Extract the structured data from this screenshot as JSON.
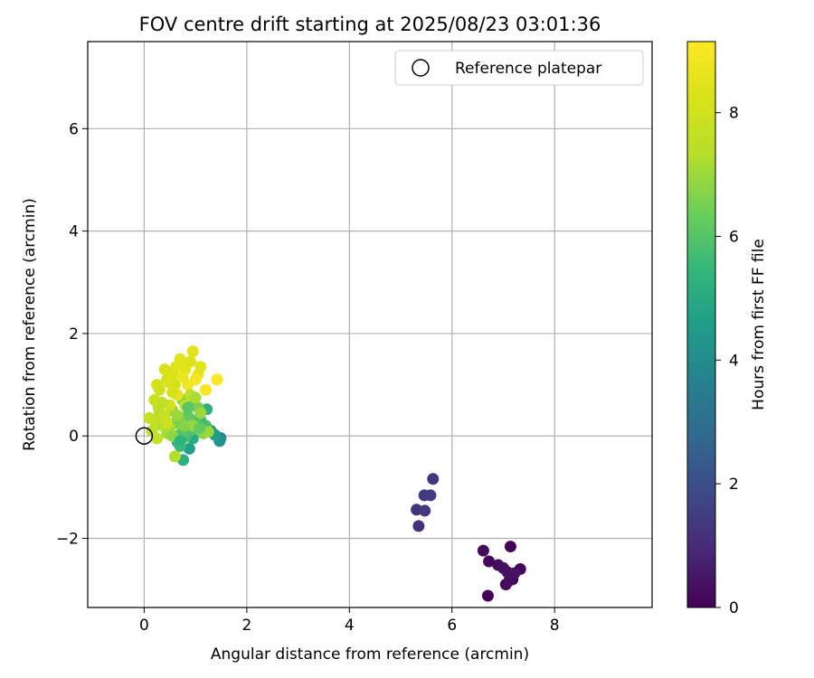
{
  "chart_data": {
    "type": "scatter",
    "title": "FOV centre drift starting at 2025/08/23 03:01:36",
    "xlabel": "Angular distance from reference (arcmin)",
    "ylabel": "Rotation from reference (arcmin)",
    "xlim": [
      -1.1,
      9.9
    ],
    "ylim": [
      -3.35,
      7.7
    ],
    "xticks": [
      0,
      2,
      4,
      6,
      8
    ],
    "yticks": [
      -2,
      0,
      2,
      4,
      6
    ],
    "xtick_labels": [
      "0",
      "2",
      "4",
      "6",
      "8"
    ],
    "ytick_labels": [
      "−2",
      "0",
      "2",
      "4",
      "6"
    ],
    "grid": true,
    "legend": {
      "placement": "top-right",
      "entries": [
        "Reference platepar"
      ]
    },
    "colorbar": {
      "label": "Hours from first FF file",
      "min": 0,
      "max": 9.15,
      "ticks": [
        0,
        2,
        4,
        6,
        8
      ],
      "tick_labels": [
        "0",
        "2",
        "4",
        "6",
        "8"
      ],
      "colormap": "viridis"
    },
    "reference_point": {
      "x": 0,
      "y": 0,
      "label": "Reference platepar"
    },
    "points": [
      {
        "x": 7.14,
        "y": -2.16,
        "h": 0.1
      },
      {
        "x": 6.61,
        "y": -2.24,
        "h": 0.2
      },
      {
        "x": 6.72,
        "y": -2.45,
        "h": 0.15
      },
      {
        "x": 6.9,
        "y": -2.52,
        "h": 0.25
      },
      {
        "x": 7.0,
        "y": -2.58,
        "h": 0.3
      },
      {
        "x": 7.08,
        "y": -2.66,
        "h": 0.35
      },
      {
        "x": 7.33,
        "y": -2.6,
        "h": 0.2
      },
      {
        "x": 7.18,
        "y": -2.8,
        "h": 0.1
      },
      {
        "x": 7.05,
        "y": -2.9,
        "h": 0.2
      },
      {
        "x": 6.7,
        "y": -3.12,
        "h": 0.1
      },
      {
        "x": 7.22,
        "y": -2.68,
        "h": 0.4
      },
      {
        "x": 7.12,
        "y": -2.82,
        "h": 0.3
      },
      {
        "x": 5.63,
        "y": -0.84,
        "h": 1.3
      },
      {
        "x": 5.46,
        "y": -1.16,
        "h": 1.4
      },
      {
        "x": 5.58,
        "y": -1.16,
        "h": 1.5
      },
      {
        "x": 5.31,
        "y": -1.44,
        "h": 1.2
      },
      {
        "x": 5.47,
        "y": -1.46,
        "h": 1.3
      },
      {
        "x": 5.35,
        "y": -1.76,
        "h": 1.2
      },
      {
        "x": 1.49,
        "y": -0.04,
        "h": 4.0
      },
      {
        "x": 1.47,
        "y": -0.1,
        "h": 4.2
      },
      {
        "x": 1.38,
        "y": 0.02,
        "h": 4.5
      },
      {
        "x": 1.3,
        "y": 0.1,
        "h": 4.6
      },
      {
        "x": 0.88,
        "y": -0.25,
        "h": 4.6
      },
      {
        "x": 0.95,
        "y": -0.05,
        "h": 5.0
      },
      {
        "x": 1.22,
        "y": 0.52,
        "h": 5.2
      },
      {
        "x": 1.1,
        "y": 0.3,
        "h": 5.5
      },
      {
        "x": 1.2,
        "y": 0.2,
        "h": 5.8
      },
      {
        "x": 0.76,
        "y": -0.47,
        "h": 5.2
      },
      {
        "x": 0.7,
        "y": -0.2,
        "h": 5.6
      },
      {
        "x": 0.65,
        "y": -0.12,
        "h": 5.4
      },
      {
        "x": 0.8,
        "y": -0.02,
        "h": 5.8
      },
      {
        "x": 0.9,
        "y": 0.1,
        "h": 5.9
      },
      {
        "x": 1.0,
        "y": 0.3,
        "h": 6.0
      },
      {
        "x": 0.72,
        "y": 0.05,
        "h": 6.0
      },
      {
        "x": 0.85,
        "y": 0.4,
        "h": 6.2
      },
      {
        "x": 0.95,
        "y": 0.6,
        "h": 6.3
      },
      {
        "x": 0.7,
        "y": 0.3,
        "h": 6.4
      },
      {
        "x": 0.6,
        "y": 0.25,
        "h": 6.5
      },
      {
        "x": 0.75,
        "y": 0.7,
        "h": 6.6
      },
      {
        "x": 1.05,
        "y": 0.55,
        "h": 6.5
      },
      {
        "x": 1.15,
        "y": 0.05,
        "h": 6.8
      },
      {
        "x": 1.25,
        "y": 0.08,
        "h": 7.0
      },
      {
        "x": 0.55,
        "y": 0.5,
        "h": 6.9
      },
      {
        "x": 0.45,
        "y": 0.05,
        "h": 7.1
      },
      {
        "x": 0.35,
        "y": 0.2,
        "h": 7.3
      },
      {
        "x": 0.6,
        "y": -0.4,
        "h": 7.3
      },
      {
        "x": 0.5,
        "y": 0.15,
        "h": 7.2
      },
      {
        "x": 0.3,
        "y": 0.45,
        "h": 7.4
      },
      {
        "x": 0.28,
        "y": 0.55,
        "h": 7.5
      },
      {
        "x": 0.2,
        "y": 0.3,
        "h": 7.6
      },
      {
        "x": 0.15,
        "y": 0.1,
        "h": 7.6
      },
      {
        "x": 0.1,
        "y": 0.35,
        "h": 7.8
      },
      {
        "x": 0.25,
        "y": -0.05,
        "h": 7.7
      },
      {
        "x": 0.2,
        "y": 0.7,
        "h": 7.9
      },
      {
        "x": 0.3,
        "y": 0.9,
        "h": 8.0
      },
      {
        "x": 0.25,
        "y": 1.0,
        "h": 8.1
      },
      {
        "x": 0.45,
        "y": 1.1,
        "h": 8.0
      },
      {
        "x": 0.4,
        "y": 1.3,
        "h": 8.2
      },
      {
        "x": 0.55,
        "y": 1.2,
        "h": 8.3
      },
      {
        "x": 0.6,
        "y": 1.0,
        "h": 8.0
      },
      {
        "x": 0.7,
        "y": 1.5,
        "h": 8.4
      },
      {
        "x": 0.8,
        "y": 1.3,
        "h": 8.5
      },
      {
        "x": 0.9,
        "y": 1.45,
        "h": 8.3
      },
      {
        "x": 0.95,
        "y": 1.65,
        "h": 8.5
      },
      {
        "x": 1.05,
        "y": 1.2,
        "h": 8.6
      },
      {
        "x": 1.1,
        "y": 1.35,
        "h": 8.5
      },
      {
        "x": 0.75,
        "y": 1.15,
        "h": 8.7
      },
      {
        "x": 0.85,
        "y": 1.0,
        "h": 8.8
      },
      {
        "x": 1.0,
        "y": 1.1,
        "h": 8.9
      },
      {
        "x": 1.2,
        "y": 0.9,
        "h": 9.0
      },
      {
        "x": 1.42,
        "y": 1.1,
        "h": 9.15
      },
      {
        "x": 0.65,
        "y": 0.8,
        "h": 8.6
      },
      {
        "x": 0.5,
        "y": 0.6,
        "h": 8.1
      },
      {
        "x": 0.55,
        "y": 0.85,
        "h": 8.2
      },
      {
        "x": 0.4,
        "y": 0.4,
        "h": 7.8
      },
      {
        "x": 0.45,
        "y": 0.25,
        "h": 7.9
      },
      {
        "x": 0.8,
        "y": 0.6,
        "h": 7.7
      },
      {
        "x": 0.9,
        "y": 0.8,
        "h": 7.5
      },
      {
        "x": 1.0,
        "y": 0.75,
        "h": 7.2
      },
      {
        "x": 1.1,
        "y": 0.45,
        "h": 7.0
      },
      {
        "x": 0.95,
        "y": 0.2,
        "h": 6.9
      },
      {
        "x": 0.65,
        "y": 0.4,
        "h": 7.0
      },
      {
        "x": 0.78,
        "y": 0.2,
        "h": 6.7
      },
      {
        "x": 0.55,
        "y": 0.0,
        "h": 6.8
      },
      {
        "x": 0.35,
        "y": 0.65,
        "h": 7.6
      },
      {
        "x": 0.62,
        "y": 1.35,
        "h": 8.4
      },
      {
        "x": 0.48,
        "y": 1.05,
        "h": 8.3
      },
      {
        "x": 0.85,
        "y": 0.55,
        "h": 6.1
      },
      {
        "x": 1.08,
        "y": 0.15,
        "h": 6.2
      },
      {
        "x": 0.7,
        "y": -0.1,
        "h": 5.3
      }
    ]
  }
}
